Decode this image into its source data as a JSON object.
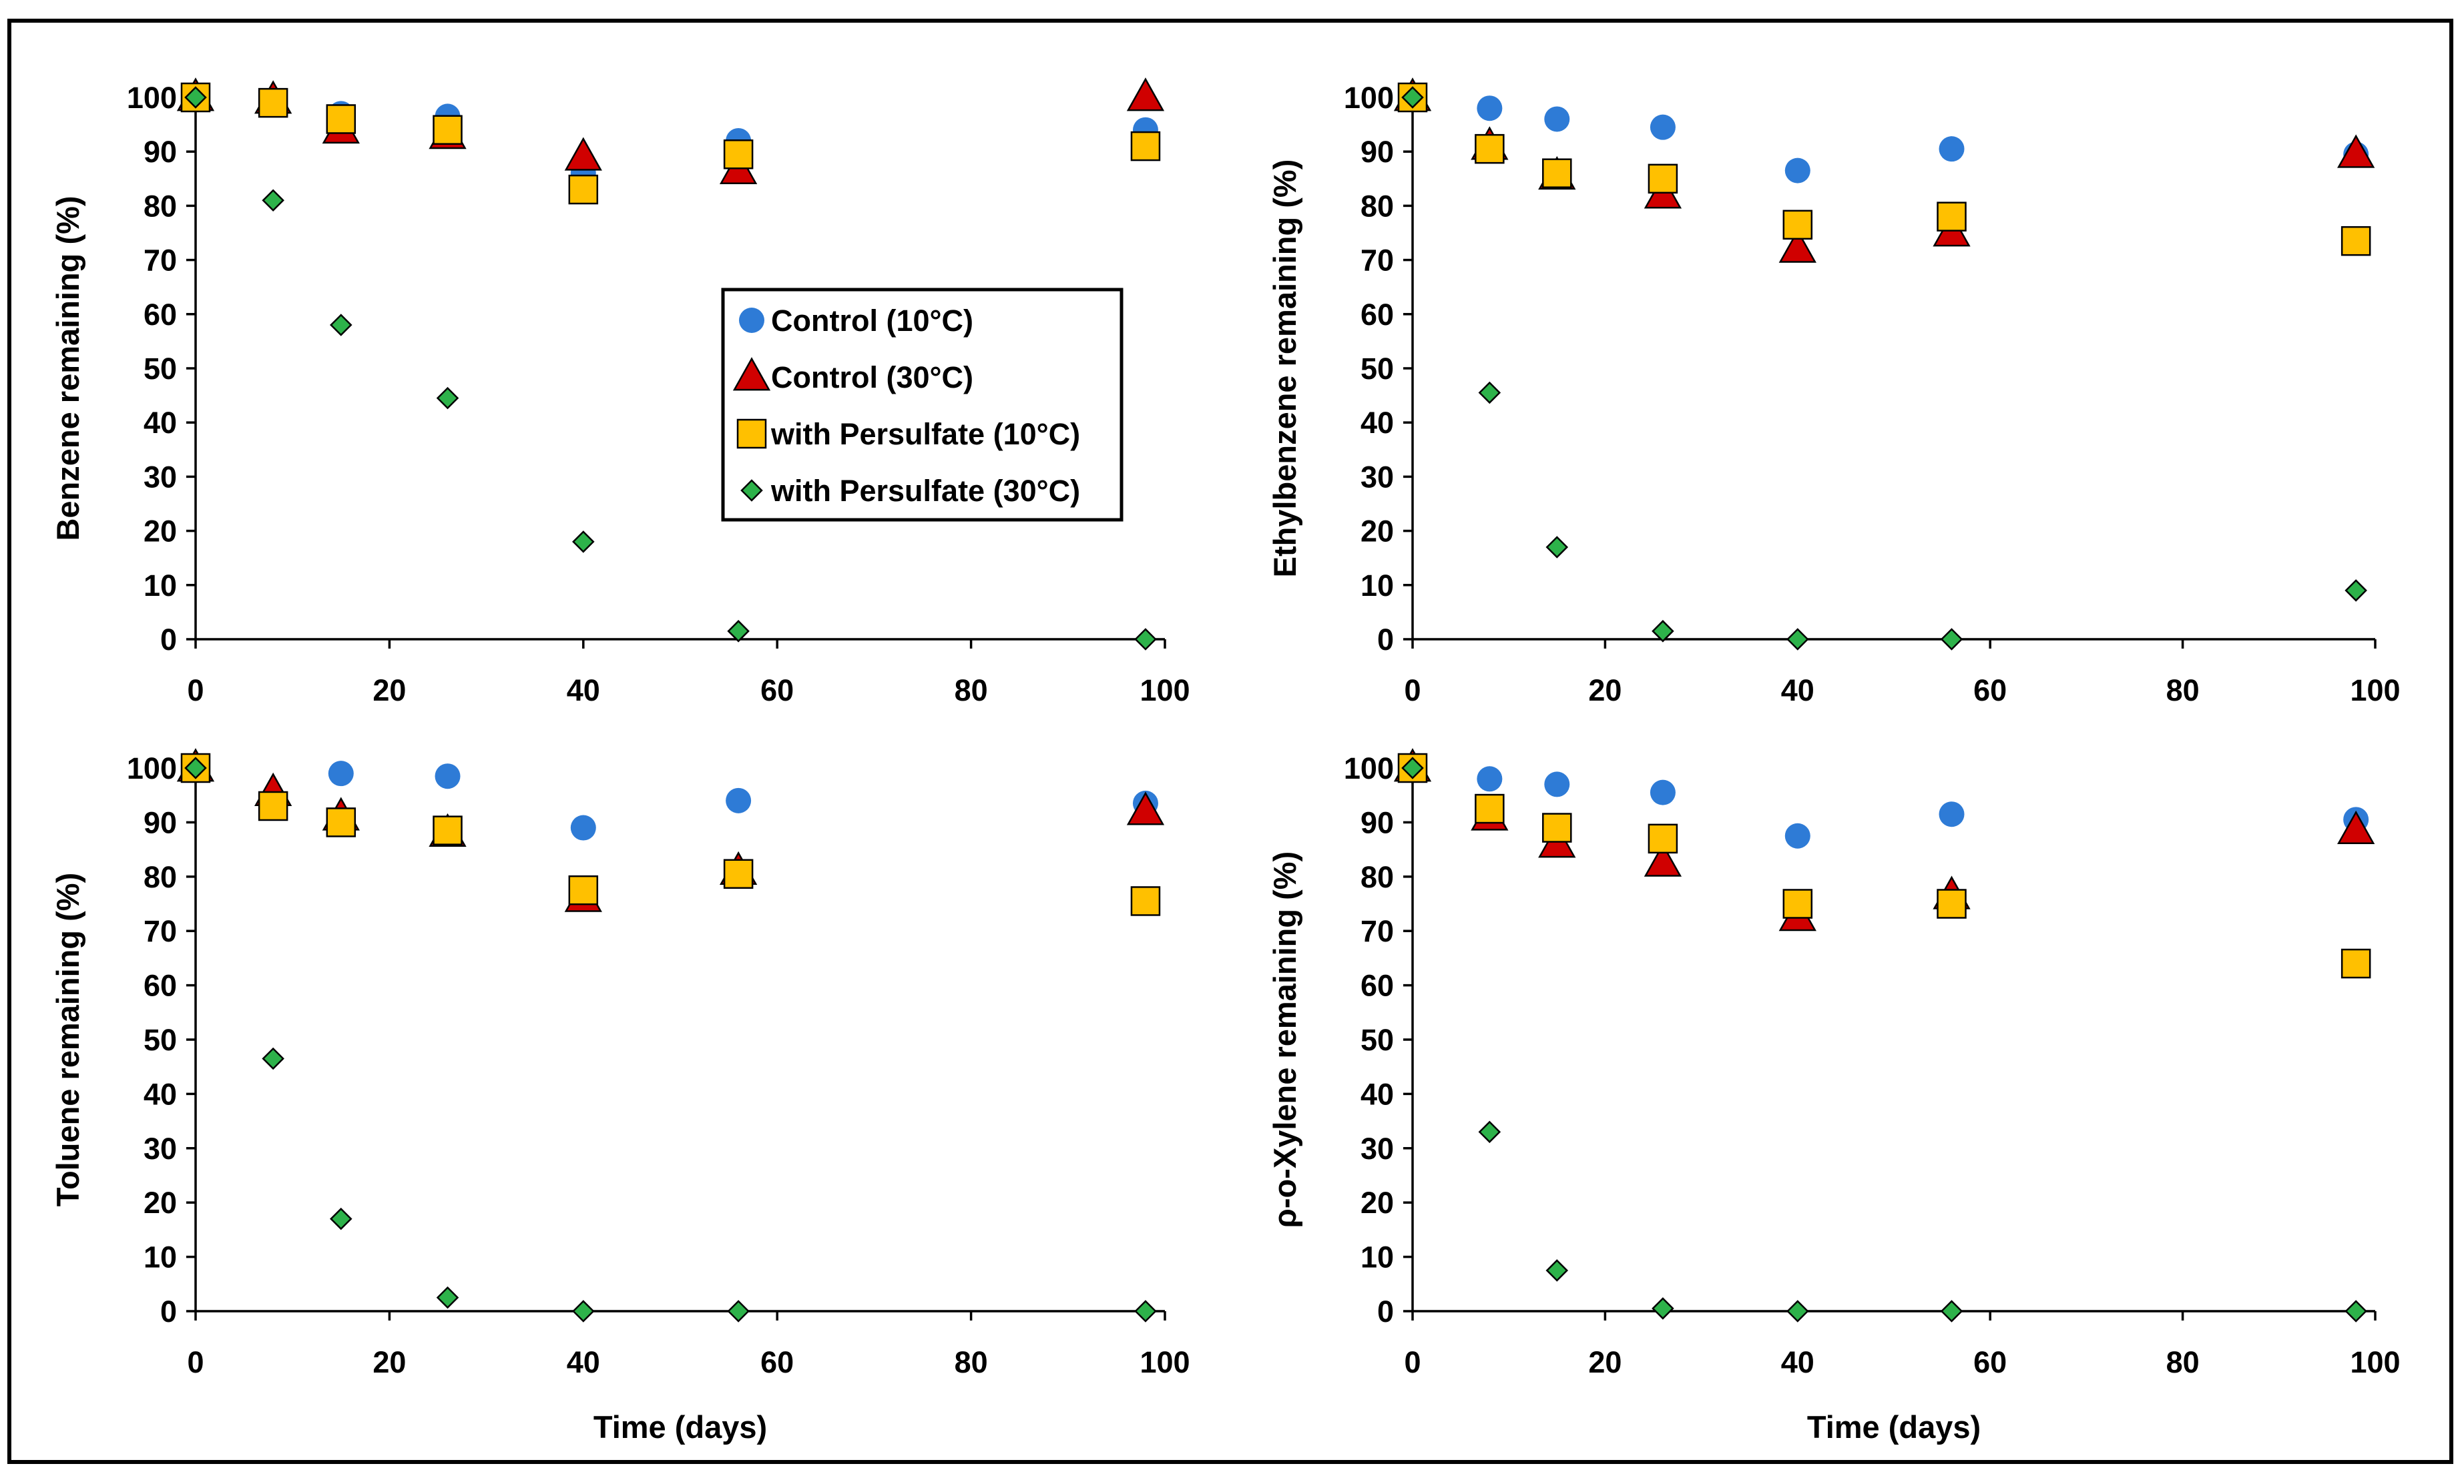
{
  "legend": [
    {
      "label": "Control (10°C)",
      "marker": "circle",
      "color": "#2E7BD6"
    },
    {
      "label": "Control (30°C)",
      "marker": "triangle",
      "color": "#D00000"
    },
    {
      "label": "with Persulfate (10°C)",
      "marker": "square",
      "color": "#FFC000"
    },
    {
      "label": "with Persulfate (30°C)",
      "marker": "diamond",
      "color": "#2DB24A"
    }
  ],
  "chart_data": [
    {
      "type": "scatter",
      "title": "",
      "xlabel": "",
      "ylabel": "Benzene remaining (%)",
      "xlim": [
        0,
        100
      ],
      "ylim": [
        0,
        100
      ],
      "xticks": [
        "0",
        "20",
        "40",
        "60",
        "80",
        "100"
      ],
      "yticks": [
        "0",
        "10",
        "20",
        "30",
        "40",
        "50",
        "60",
        "70",
        "80",
        "90",
        "100"
      ],
      "legend_position": "center",
      "series": [
        {
          "name": "Control (10°C)",
          "x": [
            0,
            8,
            15,
            26,
            40,
            56,
            98
          ],
          "y": [
            100,
            99,
            97,
            96.5,
            86,
            92,
            94
          ]
        },
        {
          "name": "Control (30°C)",
          "x": [
            0,
            8,
            15,
            26,
            40,
            56,
            98
          ],
          "y": [
            100,
            99.5,
            94,
            93,
            89,
            86.5,
            100
          ]
        },
        {
          "name": "with Persulfate (10°C)",
          "x": [
            0,
            8,
            15,
            26,
            40,
            56,
            98
          ],
          "y": [
            100,
            99,
            96,
            94,
            83,
            89.5,
            91
          ]
        },
        {
          "name": "with Persulfate (30°C)",
          "x": [
            0,
            8,
            15,
            26,
            40,
            56,
            98
          ],
          "y": [
            100,
            81,
            58,
            44.5,
            18,
            1.5,
            0
          ]
        }
      ]
    },
    {
      "type": "scatter",
      "title": "",
      "xlabel": "",
      "ylabel": "Ethylbenzene remaining (%)",
      "xlim": [
        0,
        100
      ],
      "ylim": [
        0,
        100
      ],
      "xticks": [
        "0",
        "20",
        "40",
        "60",
        "80",
        "100"
      ],
      "yticks": [
        "0",
        "10",
        "20",
        "30",
        "40",
        "50",
        "60",
        "70",
        "80",
        "90",
        "100"
      ],
      "series": [
        {
          "name": "Control (10°C)",
          "x": [
            0,
            8,
            15,
            26,
            40,
            56,
            98
          ],
          "y": [
            100,
            98,
            96,
            94.5,
            86.5,
            90.5,
            89.5
          ]
        },
        {
          "name": "Control (30°C)",
          "x": [
            0,
            8,
            15,
            26,
            40,
            56,
            98
          ],
          "y": [
            100,
            91,
            85.5,
            82,
            72,
            75,
            89.5
          ]
        },
        {
          "name": "with Persulfate (10°C)",
          "x": [
            0,
            8,
            15,
            26,
            40,
            56,
            98
          ],
          "y": [
            100,
            90.5,
            86,
            85,
            76.5,
            78,
            73.5
          ]
        },
        {
          "name": "with Persulfate (30°C)",
          "x": [
            0,
            8,
            15,
            26,
            40,
            56,
            98
          ],
          "y": [
            100,
            45.5,
            17,
            1.5,
            0,
            0,
            9
          ]
        }
      ]
    },
    {
      "type": "scatter",
      "title": "",
      "xlabel": "Time (days)",
      "ylabel": "Toluene remaining (%)",
      "xlim": [
        0,
        100
      ],
      "ylim": [
        0,
        100
      ],
      "xticks": [
        "0",
        "20",
        "40",
        "60",
        "80",
        "100"
      ],
      "yticks": [
        "0",
        "10",
        "20",
        "30",
        "40",
        "50",
        "60",
        "70",
        "80",
        "90",
        "100"
      ],
      "series": [
        {
          "name": "Control (10°C)",
          "x": [
            0,
            8,
            15,
            26,
            40,
            56,
            98
          ],
          "y": [
            100,
            94,
            99,
            98.5,
            89,
            94,
            93.5
          ]
        },
        {
          "name": "Control (30°C)",
          "x": [
            0,
            8,
            15,
            26,
            40,
            56,
            98
          ],
          "y": [
            100,
            95.5,
            91,
            88,
            76,
            81,
            92
          ]
        },
        {
          "name": "with Persulfate (10°C)",
          "x": [
            0,
            8,
            15,
            26,
            40,
            56,
            98
          ],
          "y": [
            100,
            93,
            90,
            88.5,
            77.5,
            80.5,
            75.5
          ]
        },
        {
          "name": "with Persulfate (30°C)",
          "x": [
            0,
            8,
            15,
            26,
            40,
            56,
            98
          ],
          "y": [
            100,
            46.5,
            17,
            2.5,
            0,
            0,
            0
          ]
        }
      ]
    },
    {
      "type": "scatter",
      "title": "",
      "xlabel": "Time (days)",
      "ylabel": "ρ-o-Xylene remaining (%)",
      "xlim": [
        0,
        100
      ],
      "ylim": [
        0,
        100
      ],
      "xticks": [
        "0",
        "20",
        "40",
        "60",
        "80",
        "100"
      ],
      "yticks": [
        "0",
        "10",
        "20",
        "30",
        "40",
        "50",
        "60",
        "70",
        "80",
        "90",
        "100"
      ],
      "series": [
        {
          "name": "Control (10°C)",
          "x": [
            0,
            8,
            15,
            26,
            40,
            56,
            98
          ],
          "y": [
            100,
            98,
            97,
            95.5,
            87.5,
            91.5,
            90.5
          ]
        },
        {
          "name": "Control (30°C)",
          "x": [
            0,
            8,
            15,
            26,
            40,
            56,
            98
          ],
          "y": [
            100,
            91,
            86,
            82.5,
            72.5,
            76.5,
            88.5
          ]
        },
        {
          "name": "with Persulfate (10°C)",
          "x": [
            0,
            8,
            15,
            26,
            40,
            56,
            98
          ],
          "y": [
            100,
            92.5,
            89,
            87,
            75,
            75,
            64
          ]
        },
        {
          "name": "with Persulfate (30°C)",
          "x": [
            0,
            8,
            15,
            26,
            40,
            56,
            98
          ],
          "y": [
            100,
            33,
            7.5,
            0.5,
            0,
            0,
            0
          ]
        }
      ]
    }
  ]
}
